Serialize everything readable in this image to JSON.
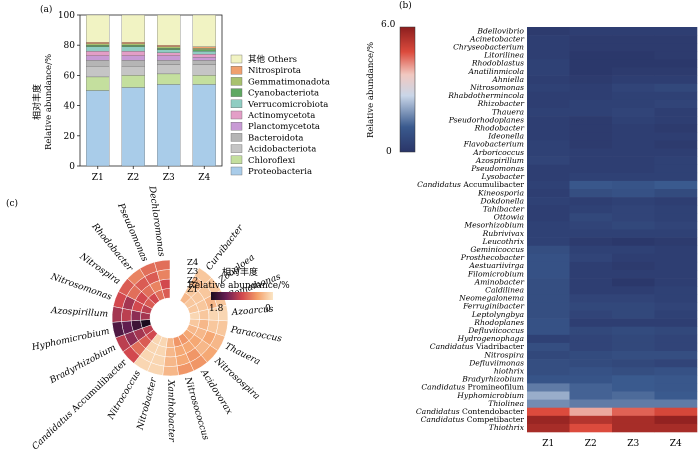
{
  "panel_a": {
    "label": "(a)",
    "ylabel_cn": "相对丰度",
    "ylabel_en": "Relative abundance/%",
    "yticks": [
      0,
      20,
      40,
      60,
      80,
      100
    ],
    "legend_order": [
      "其他 Others",
      "Nitrospirota",
      "Gemmatimonadota",
      "Cyanobacteriota",
      "Verrucomicrobiota",
      "Actinomycetota",
      "Planctomycetota",
      "Bacteroidota",
      "Acidobacteriota",
      "Chloroflexi",
      "Proteobacteria"
    ],
    "colors": {
      "Proteobacteria": "#a9cce9",
      "Chloroflexi": "#c4df9e",
      "Acidobacteriota": "#c5c5c5",
      "Bacteroidota": "#b5b5b5",
      "Planctomycetota": "#c89ad5",
      "Actinomycetota": "#e39ec7",
      "Verrucomicrobiota": "#8fcdc2",
      "Cyanobacteriota": "#5fa862",
      "Gemmatimonadota": "#a8c16e",
      "Nitrospirota": "#f0a06f",
      "其他 Others": "#f1f3c3"
    },
    "chart_data": {
      "type": "bar",
      "stacked": true,
      "categories": [
        "Z1",
        "Z2",
        "Z3",
        "Z4"
      ],
      "ylim": [
        0,
        100
      ],
      "series": [
        {
          "name": "Proteobacteria",
          "values": [
            50,
            52,
            54,
            54
          ]
        },
        {
          "name": "Chloroflexi",
          "values": [
            9,
            8,
            7,
            6
          ]
        },
        {
          "name": "Acidobacteriota",
          "values": [
            7,
            6,
            6,
            7
          ]
        },
        {
          "name": "Bacteroidota",
          "values": [
            4,
            4,
            3,
            3
          ]
        },
        {
          "name": "Planctomycetota",
          "values": [
            3,
            3,
            3,
            2
          ]
        },
        {
          "name": "Actinomycetota",
          "values": [
            3,
            3,
            2,
            2
          ]
        },
        {
          "name": "Verrucomicrobiota",
          "values": [
            3,
            3,
            2,
            2
          ]
        },
        {
          "name": "Cyanobacteriota",
          "values": [
            1,
            1,
            1,
            1
          ]
        },
        {
          "name": "Gemmatimonadota",
          "values": [
            1,
            1,
            1,
            1
          ]
        },
        {
          "name": "Nitrospirota",
          "values": [
            1,
            1,
            1,
            1
          ]
        },
        {
          "name": "其他 Others",
          "values": [
            18,
            18,
            20,
            21
          ]
        }
      ]
    }
  },
  "panel_b": {
    "label": "(b)",
    "colorbar": {
      "max_label": "6.0",
      "min_label": "0",
      "ylabel": "Relative abundance/%",
      "max": 6.0,
      "min": 0
    },
    "chart_data": {
      "type": "heatmap",
      "columns": [
        "Z1",
        "Z2",
        "Z3",
        "Z4"
      ],
      "rows": [
        {
          "prefix": "",
          "name": "Bdellovibrio",
          "values": [
            0.2,
            0.3,
            0.3,
            0.3
          ]
        },
        {
          "prefix": "",
          "name": "Acinetobacter",
          "values": [
            0.3,
            0.2,
            0.2,
            0.2
          ]
        },
        {
          "prefix": "",
          "name": "Chryseobacterium",
          "values": [
            0.3,
            0.2,
            0.2,
            0.2
          ]
        },
        {
          "prefix": "",
          "name": "Litorilinea",
          "values": [
            0.3,
            0.1,
            0.1,
            0.2
          ]
        },
        {
          "prefix": "",
          "name": "Rhodoblastus",
          "values": [
            0.4,
            0.1,
            0.1,
            0.1
          ]
        },
        {
          "prefix": "",
          "name": "Anatilinmicola",
          "values": [
            0.4,
            0.1,
            0.2,
            0.2
          ]
        },
        {
          "prefix": "",
          "name": "Ahniella",
          "values": [
            0.3,
            0.2,
            0.3,
            0.3
          ]
        },
        {
          "prefix": "",
          "name": "Nitrosomonas",
          "values": [
            0.4,
            0.3,
            0.5,
            0.6
          ]
        },
        {
          "prefix": "",
          "name": "Rhabdothermincola",
          "values": [
            0.3,
            0.3,
            0.4,
            0.4
          ]
        },
        {
          "prefix": "",
          "name": "Rhizobacter",
          "values": [
            0.3,
            0.4,
            0.4,
            0.5
          ]
        },
        {
          "prefix": "",
          "name": "Thauera",
          "values": [
            0.4,
            0.4,
            0.5,
            0.3
          ]
        },
        {
          "prefix": "",
          "name": "Pseudorhodoplanes",
          "values": [
            0.3,
            0.2,
            0.4,
            0.3
          ]
        },
        {
          "prefix": "",
          "name": "Rhodobacter",
          "values": [
            0.3,
            0.2,
            0.3,
            0.2
          ]
        },
        {
          "prefix": "",
          "name": "Ideonella",
          "values": [
            0.3,
            0.2,
            0.3,
            0.3
          ]
        },
        {
          "prefix": "",
          "name": "Flavobacterium",
          "values": [
            0.4,
            0.2,
            0.3,
            0.2
          ]
        },
        {
          "prefix": "",
          "name": "Arboricoccus",
          "values": [
            0.4,
            0.3,
            0.3,
            0.3
          ]
        },
        {
          "prefix": "",
          "name": "Azospirillum",
          "values": [
            0.5,
            0.3,
            0.3,
            0.4
          ]
        },
        {
          "prefix": "",
          "name": "Pseudomonas",
          "values": [
            0.3,
            0.3,
            0.3,
            0.4
          ]
        },
        {
          "prefix": "",
          "name": "Lysobacter",
          "values": [
            0.3,
            0.4,
            0.4,
            0.4
          ]
        },
        {
          "prefix": "Candidatus",
          "name": "Accumulibacter",
          "values": [
            0.4,
            1.1,
            1.0,
            1.2
          ]
        },
        {
          "prefix": "",
          "name": "Kineosporia",
          "values": [
            0.3,
            0.8,
            0.9,
            0.7
          ]
        },
        {
          "prefix": "",
          "name": "Dokdonella",
          "values": [
            0.4,
            0.3,
            0.4,
            0.3
          ]
        },
        {
          "prefix": "",
          "name": "Tahibacter",
          "values": [
            0.3,
            0.4,
            0.5,
            0.4
          ]
        },
        {
          "prefix": "",
          "name": "Ottowia",
          "values": [
            0.3,
            0.6,
            0.5,
            0.4
          ]
        },
        {
          "prefix": "",
          "name": "Mesorhizobium",
          "values": [
            0.4,
            0.5,
            0.6,
            0.5
          ]
        },
        {
          "prefix": "",
          "name": "Rubrivivax",
          "values": [
            0.4,
            0.4,
            0.4,
            0.4
          ]
        },
        {
          "prefix": "",
          "name": "Leucothrix",
          "values": [
            0.4,
            0.2,
            0.1,
            0.2
          ]
        },
        {
          "prefix": "",
          "name": "Geminicoccus",
          "values": [
            0.8,
            0.4,
            0.4,
            0.3
          ]
        },
        {
          "prefix": "",
          "name": "Prosthecobacter",
          "values": [
            0.9,
            0.5,
            0.3,
            0.3
          ]
        },
        {
          "prefix": "",
          "name": "Aestuariivirga",
          "values": [
            0.9,
            0.3,
            0.2,
            0.3
          ]
        },
        {
          "prefix": "",
          "name": "Filomicrobium",
          "values": [
            0.9,
            0.3,
            0.3,
            0.3
          ]
        },
        {
          "prefix": "",
          "name": "Aminobacter",
          "values": [
            0.8,
            0.3,
            0.1,
            0.3
          ]
        },
        {
          "prefix": "",
          "name": "Caldilinea",
          "values": [
            0.8,
            0.3,
            0.3,
            0.4
          ]
        },
        {
          "prefix": "",
          "name": "Neomegalonema",
          "values": [
            0.8,
            0.5,
            0.5,
            0.4
          ]
        },
        {
          "prefix": "",
          "name": "Ferruginibacter",
          "values": [
            0.8,
            0.6,
            0.6,
            0.5
          ]
        },
        {
          "prefix": "",
          "name": "Leptolyngbya",
          "values": [
            0.8,
            0.5,
            0.6,
            0.4
          ]
        },
        {
          "prefix": "",
          "name": "Rhodoplanes",
          "values": [
            0.9,
            0.3,
            0.3,
            0.3
          ]
        },
        {
          "prefix": "",
          "name": "Defluviicoccus",
          "values": [
            0.9,
            0.6,
            0.7,
            0.6
          ]
        },
        {
          "prefix": "",
          "name": "Hydrogenophaga",
          "values": [
            0.4,
            0.5,
            0.6,
            0.5
          ]
        },
        {
          "prefix": "Candidatus",
          "name": "Viadribacter",
          "values": [
            0.8,
            0.5,
            0.6,
            0.5
          ]
        },
        {
          "prefix": "",
          "name": "Nitrospira",
          "values": [
            0.6,
            0.7,
            0.8,
            0.8
          ]
        },
        {
          "prefix": "",
          "name": "Defluviimonas",
          "values": [
            0.8,
            0.7,
            0.6,
            0.5
          ]
        },
        {
          "prefix": "",
          "name": "hiothrix",
          "values": [
            0.8,
            0.9,
            0.8,
            0.9
          ]
        },
        {
          "prefix": "",
          "name": "Bradyrhizobium",
          "values": [
            1.0,
            1.0,
            1.2,
            1.1
          ]
        },
        {
          "prefix": "Candidatus",
          "name": "Promineofilum",
          "values": [
            1.6,
            1.3,
            1.2,
            1.1
          ]
        },
        {
          "prefix": "",
          "name": "Hyphomicrobium",
          "values": [
            2.2,
            1.3,
            1.4,
            1.2
          ]
        },
        {
          "prefix": "",
          "name": "Thiolinea",
          "values": [
            1.8,
            1.6,
            1.6,
            1.6
          ]
        },
        {
          "prefix": "Candidatus",
          "name": "Contendobacter",
          "values": [
            4.8,
            4.0,
            4.6,
            4.9
          ]
        },
        {
          "prefix": "Candidatus",
          "name": "Competibacter",
          "values": [
            5.8,
            5.4,
            5.6,
            5.9
          ]
        },
        {
          "prefix": "",
          "name": "Thiothrix",
          "values": [
            5.6,
            4.8,
            5.6,
            5.6
          ]
        }
      ]
    }
  },
  "panel_c": {
    "label": "(c)",
    "legend_cn": "相对丰度",
    "legend_en": "Relative abundance/%",
    "legend_max": "1.8",
    "legend_min": "0",
    "ring_labels": [
      "Z4",
      "Z3",
      "Z2",
      "Z1"
    ],
    "chart_data": {
      "type": "heatmap",
      "layout": "circular",
      "samples": [
        "Z1",
        "Z2",
        "Z3",
        "Z4"
      ],
      "range": [
        0,
        1.8
      ],
      "genera": [
        {
          "prefix": "",
          "name": "Dechloromonas",
          "values": [
            0.8,
            0.9,
            0.6,
            0.7
          ]
        },
        {
          "prefix": "",
          "name": "Pseudomonas",
          "values": [
            0.7,
            0.6,
            0.8,
            0.7
          ]
        },
        {
          "prefix": "",
          "name": "Rhodobacter",
          "values": [
            0.9,
            0.7,
            0.8,
            0.6
          ]
        },
        {
          "prefix": "",
          "name": "Nitrospira",
          "values": [
            0.8,
            0.9,
            0.7,
            0.8
          ]
        },
        {
          "prefix": "",
          "name": "Nitrosomonas",
          "values": [
            1.0,
            0.9,
            1.1,
            0.9
          ]
        },
        {
          "prefix": "",
          "name": "Azospirillum",
          "values": [
            1.1,
            1.2,
            1.0,
            1.1
          ]
        },
        {
          "prefix": "",
          "name": "Hyphomicrobium",
          "values": [
            1.8,
            1.6,
            1.4,
            1.5
          ]
        },
        {
          "prefix": "",
          "name": "Bradyrhizobium",
          "values": [
            1.0,
            1.1,
            1.2,
            1.0
          ]
        },
        {
          "prefix": "Candidatus",
          "name": "Accumulibacter",
          "values": [
            0.9,
            0.8,
            0.7,
            0.9
          ]
        },
        {
          "prefix": "",
          "name": "Nitrococcus",
          "values": [
            0.1,
            0.1,
            0.1,
            0.1
          ]
        },
        {
          "prefix": "",
          "name": "Nitrobacter",
          "values": [
            0.1,
            0.1,
            0.1,
            0.1
          ]
        },
        {
          "prefix": "",
          "name": "Xanthobacter",
          "values": [
            0.3,
            0.3,
            0.3,
            0.3
          ]
        },
        {
          "prefix": "",
          "name": "Nitrosococcus",
          "values": [
            0.5,
            0.4,
            0.4,
            0.5
          ]
        },
        {
          "prefix": "",
          "name": "Acidovorax",
          "values": [
            0.5,
            0.4,
            0.5,
            0.5
          ]
        },
        {
          "prefix": "",
          "name": "Nitrosospira",
          "values": [
            0.4,
            0.4,
            0.3,
            0.4
          ]
        },
        {
          "prefix": "",
          "name": "Thauera",
          "values": [
            0.3,
            0.3,
            0.4,
            0.3
          ]
        },
        {
          "prefix": "",
          "name": "Paracoccus",
          "values": [
            0.2,
            0.3,
            0.2,
            0.2
          ]
        },
        {
          "prefix": "",
          "name": "Azoarcus",
          "values": [
            0.1,
            0.2,
            0.1,
            0.1
          ]
        },
        {
          "prefix": "",
          "name": "Comamonas",
          "values": [
            0.2,
            0.2,
            0.3,
            0.2
          ]
        },
        {
          "prefix": "",
          "name": "Zoogloea",
          "values": [
            0.2,
            0.2,
            0.2,
            0.2
          ]
        },
        {
          "prefix": "",
          "name": "Curvibacter",
          "values": [
            0.3,
            0.2,
            0.3,
            0.2
          ]
        }
      ]
    }
  }
}
